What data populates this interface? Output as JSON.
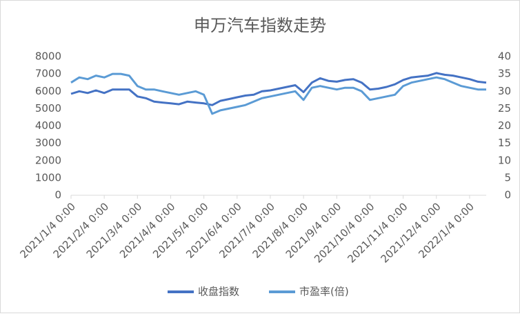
{
  "chart_data": {
    "type": "line",
    "title": "申万汽车指数走势",
    "categories": [
      "2021/1/4 0:00",
      null,
      null,
      null,
      "2021/2/4 0:00",
      null,
      null,
      null,
      "2021/3/4 0:00",
      null,
      null,
      null,
      "2021/4/4 0:00",
      null,
      null,
      null,
      "2021/5/4 0:00",
      null,
      null,
      null,
      "2021/6/4 0:00",
      null,
      null,
      null,
      "2021/7/4 0:00",
      null,
      null,
      null,
      "2021/8/4 0:00",
      null,
      null,
      null,
      "2021/9/4 0:00",
      null,
      null,
      null,
      "2021/10/4 0:00",
      null,
      null,
      null,
      "2021/11/4 0:00",
      null,
      null,
      null,
      "2021/12/4 0:00",
      null,
      null,
      null,
      "2022/1/4 0:00",
      null,
      null
    ],
    "series": [
      {
        "name": "收盘指数",
        "color": "#4472c4",
        "axis": "y",
        "values": [
          5850,
          6000,
          5900,
          6050,
          5900,
          6100,
          6100,
          6100,
          5700,
          5600,
          5400,
          5350,
          5300,
          5250,
          5400,
          5350,
          5300,
          5200,
          5450,
          5550,
          5650,
          5750,
          5800,
          6000,
          6050,
          6150,
          6250,
          6350,
          5950,
          6500,
          6750,
          6600,
          6550,
          6650,
          6700,
          6500,
          6100,
          6150,
          6250,
          6400,
          6650,
          6800,
          6850,
          6900,
          7050,
          6950,
          6900,
          6800,
          6700,
          6550,
          6500
        ]
      },
      {
        "name": "市盈率(倍)",
        "color": "#5b9bd5",
        "axis": "y2",
        "values": [
          32.5,
          34,
          33.5,
          34.5,
          34,
          35,
          35,
          34.5,
          31.5,
          30.5,
          30.5,
          30,
          29.5,
          29,
          29.5,
          30,
          29,
          23.5,
          24.5,
          25,
          25.5,
          26,
          27,
          28,
          28.5,
          29,
          29.5,
          30,
          27.5,
          31,
          31.5,
          31,
          30.5,
          31,
          31,
          30,
          27.5,
          28,
          28.5,
          29,
          31.5,
          32.5,
          33,
          33.5,
          34,
          33.5,
          32.5,
          31.5,
          31,
          30.5,
          30.5
        ]
      }
    ],
    "ylim": [
      0,
      8000
    ],
    "yticks": [
      0,
      1000,
      2000,
      3000,
      4000,
      5000,
      6000,
      7000,
      8000
    ],
    "y2lim": [
      0,
      40
    ],
    "y2ticks": [
      0,
      5,
      10,
      15,
      20,
      25,
      30,
      35,
      40
    ],
    "grid": false,
    "legend": "bottom"
  }
}
